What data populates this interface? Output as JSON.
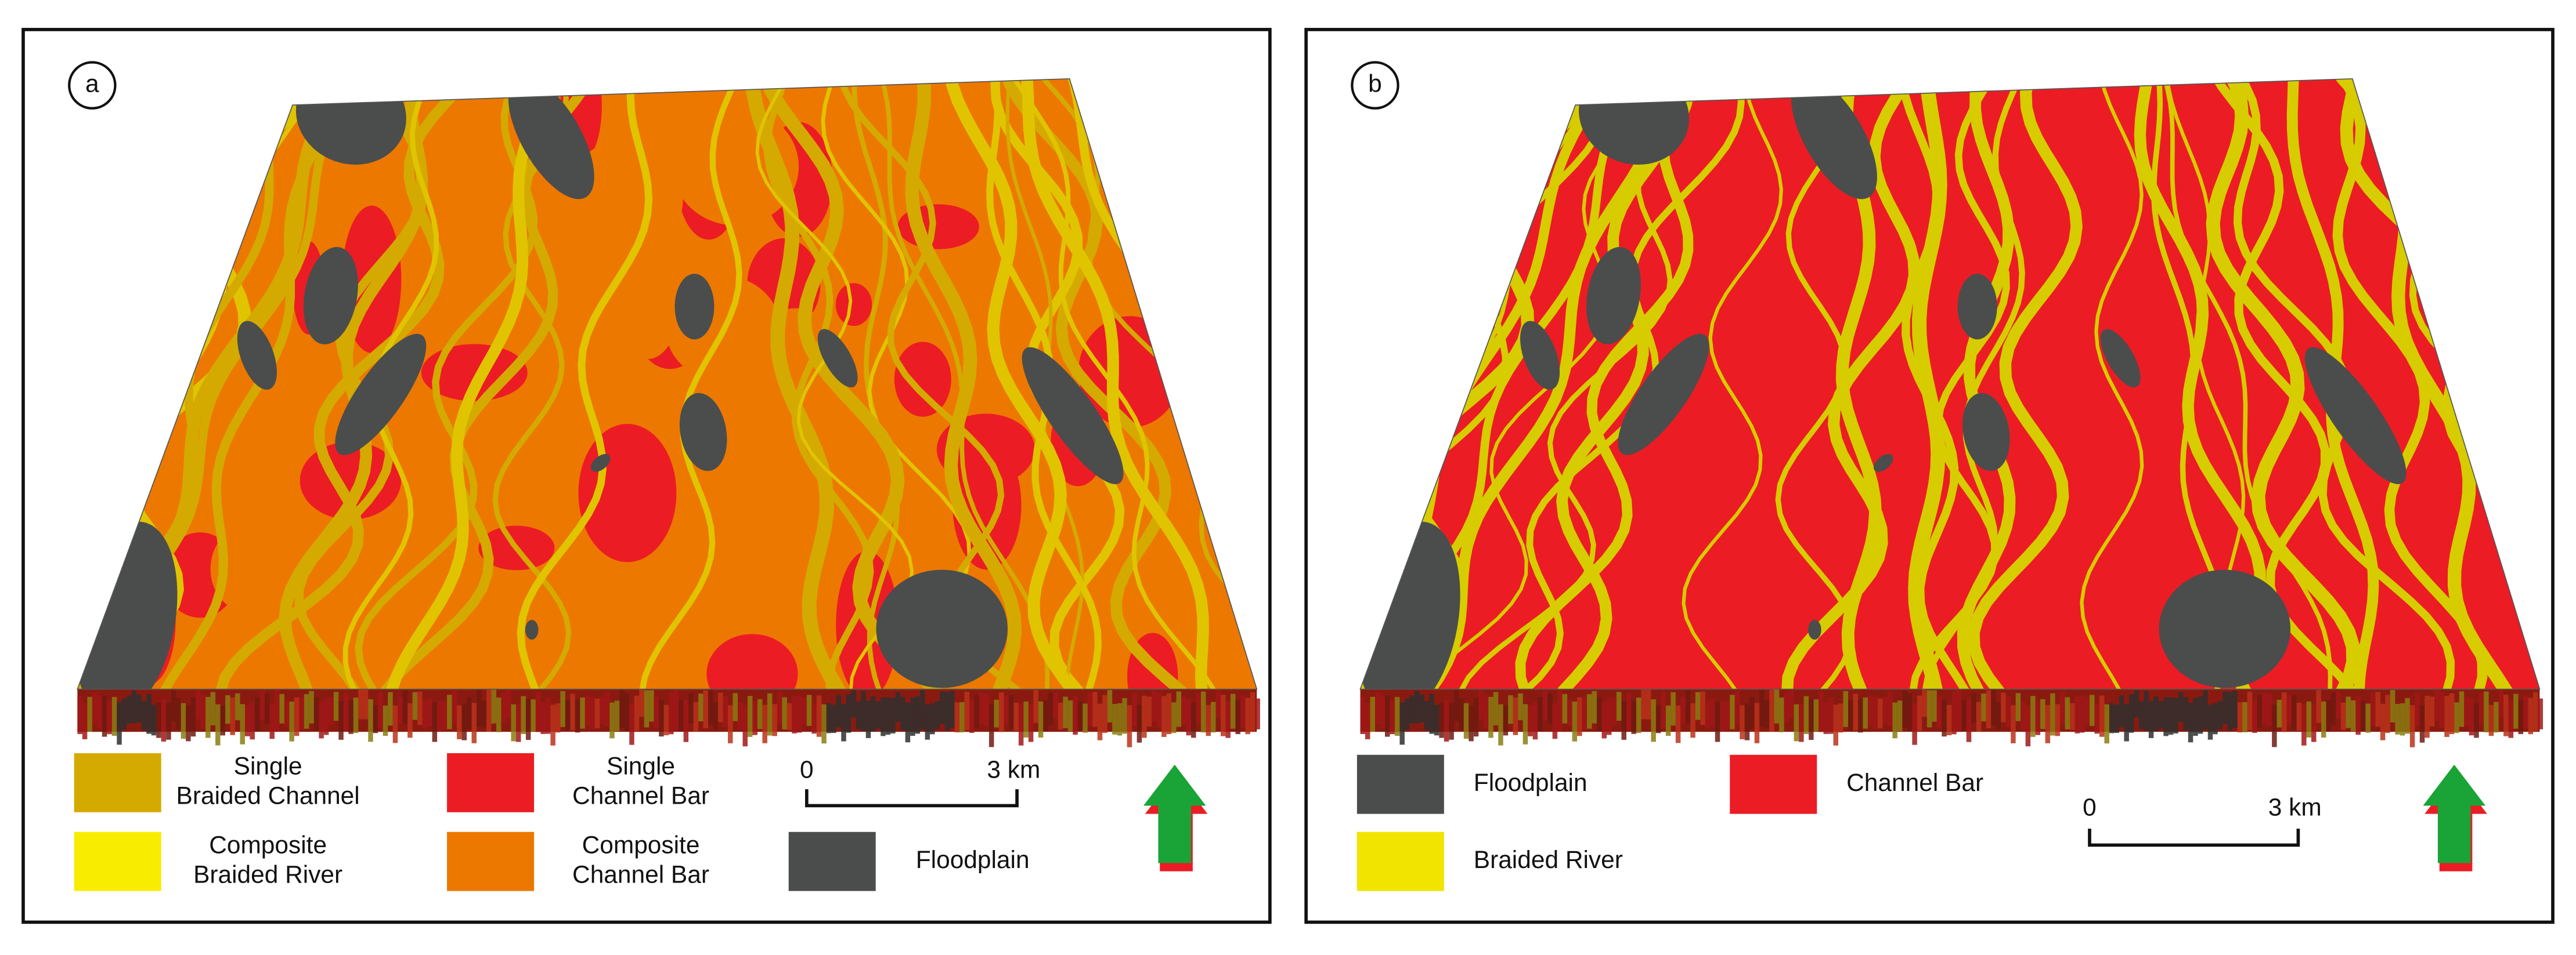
{
  "panels": [
    {
      "label": "a",
      "legend": [
        {
          "lines": [
            "Single",
            "Braided Channel"
          ],
          "color": "#d4aa00"
        },
        {
          "lines": [
            "Composite",
            "Braided River"
          ],
          "color": "#f8ec00"
        },
        {
          "lines": [
            "Single",
            "Channel Bar"
          ],
          "color": "#ec1c24"
        },
        {
          "lines": [
            "Composite",
            "Channel Bar"
          ],
          "color": "#ec7800"
        },
        {
          "lines": [
            "Floodplain"
          ],
          "color": "#4a4d4c"
        }
      ],
      "scale_bar": {
        "start": "0",
        "end": "3 km"
      }
    },
    {
      "label": "b",
      "legend": [
        {
          "lines": [
            "Floodplain"
          ],
          "color": "#4a4d4c"
        },
        {
          "lines": [
            "Channel Bar"
          ],
          "color": "#ec1c24"
        },
        {
          "lines": [
            "Braided River"
          ],
          "color": "#f0e400"
        }
      ],
      "scale_bar": {
        "start": "0",
        "end": "3 km"
      }
    }
  ]
}
